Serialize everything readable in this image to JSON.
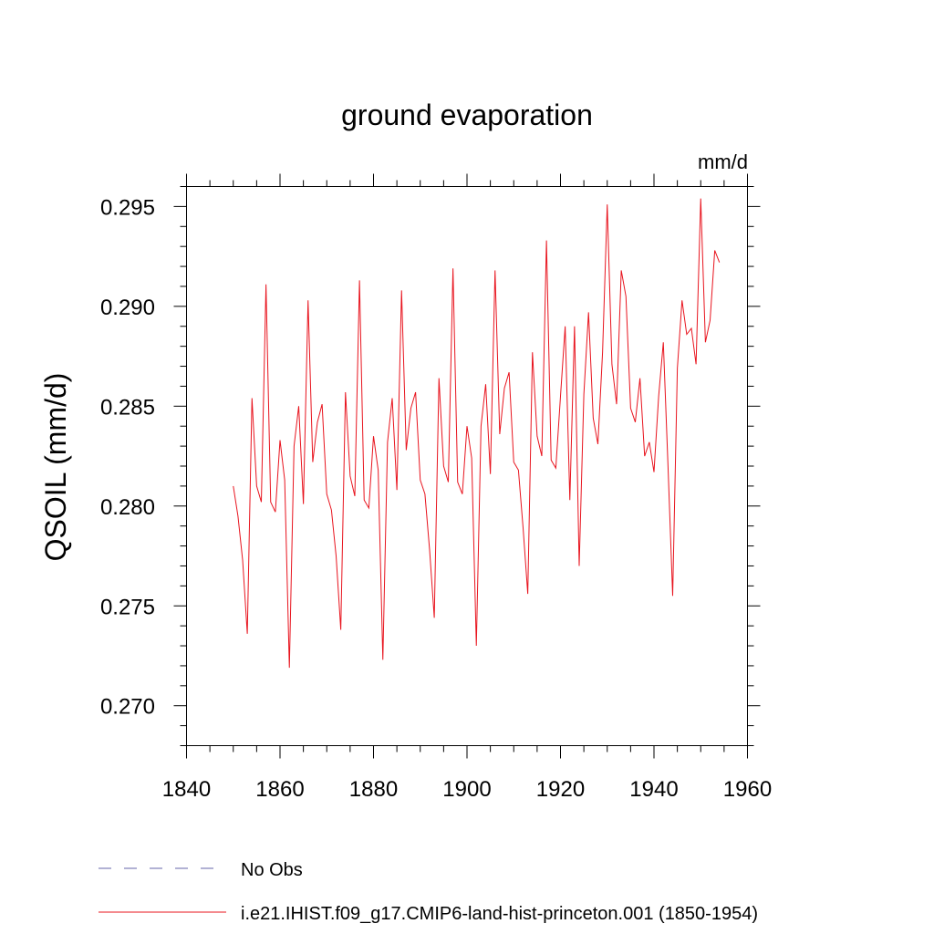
{
  "chart_data": {
    "type": "line",
    "title": "ground evaporation",
    "units_label": "mm/d",
    "ylabel": "QSOIL  (mm/d)",
    "xlabel": "",
    "xlim": [
      1840,
      1960
    ],
    "ylim": [
      0.268,
      0.296
    ],
    "xticks": [
      1840,
      1860,
      1880,
      1900,
      1920,
      1940,
      1960
    ],
    "xtick_labels": [
      "1840",
      "1860",
      "1880",
      "1900",
      "1920",
      "1940",
      "1960"
    ],
    "yticks": [
      0.27,
      0.275,
      0.28,
      0.285,
      0.29,
      0.295
    ],
    "ytick_labels": [
      "0.270",
      "0.275",
      "0.280",
      "0.285",
      "0.290",
      "0.295"
    ],
    "grid": false,
    "legend_position": "bottom",
    "series": [
      {
        "name": "i.e21.IHIST.f09_g17.CMIP6-land-hist-princeton.001 (1850-1954)",
        "color": "#e8141e",
        "style": "solid",
        "x": [
          1850,
          1851,
          1852,
          1853,
          1854,
          1855,
          1856,
          1857,
          1858,
          1859,
          1860,
          1861,
          1862,
          1863,
          1864,
          1865,
          1866,
          1867,
          1868,
          1869,
          1870,
          1871,
          1872,
          1873,
          1874,
          1875,
          1876,
          1877,
          1878,
          1879,
          1880,
          1881,
          1882,
          1883,
          1884,
          1885,
          1886,
          1887,
          1888,
          1889,
          1890,
          1891,
          1892,
          1893,
          1894,
          1895,
          1896,
          1897,
          1898,
          1899,
          1900,
          1901,
          1902,
          1903,
          1904,
          1905,
          1906,
          1907,
          1908,
          1909,
          1910,
          1911,
          1912,
          1913,
          1914,
          1915,
          1916,
          1917,
          1918,
          1919,
          1920,
          1921,
          1922,
          1923,
          1924,
          1925,
          1926,
          1927,
          1928,
          1929,
          1930,
          1931,
          1932,
          1933,
          1934,
          1935,
          1936,
          1937,
          1938,
          1939,
          1940,
          1941,
          1942,
          1943,
          1944,
          1945,
          1946,
          1947,
          1948,
          1949,
          1950,
          1951,
          1952,
          1953,
          1954
        ],
        "y": [
          0.281,
          0.2795,
          0.2773,
          0.2736,
          0.2854,
          0.281,
          0.2802,
          0.2911,
          0.2802,
          0.2797,
          0.2833,
          0.2813,
          0.2719,
          0.283,
          0.285,
          0.2801,
          0.2903,
          0.2822,
          0.2842,
          0.2851,
          0.2806,
          0.2798,
          0.2775,
          0.2738,
          0.2857,
          0.2815,
          0.2805,
          0.2913,
          0.2803,
          0.2799,
          0.2835,
          0.2818,
          0.2723,
          0.2832,
          0.2854,
          0.2808,
          0.2908,
          0.2828,
          0.2849,
          0.2857,
          0.2813,
          0.2806,
          0.2778,
          0.2744,
          0.2864,
          0.282,
          0.2812,
          0.2919,
          0.2812,
          0.2806,
          0.284,
          0.2824,
          0.273,
          0.284,
          0.2861,
          0.2816,
          0.2918,
          0.2836,
          0.2859,
          0.2867,
          0.2822,
          0.2818,
          0.2789,
          0.2756,
          0.2877,
          0.2835,
          0.2825,
          0.2933,
          0.2823,
          0.2819,
          0.2855,
          0.289,
          0.2803,
          0.289,
          0.277,
          0.2856,
          0.2897,
          0.2844,
          0.2831,
          0.2877,
          0.2951,
          0.2871,
          0.2851,
          0.2918,
          0.2905,
          0.2849,
          0.2842,
          0.2864,
          0.2825,
          0.2832,
          0.2817,
          0.2855,
          0.2882,
          0.282,
          0.2755,
          0.2869,
          0.2903,
          0.2886,
          0.2889,
          0.2871,
          0.2954,
          0.2882,
          0.2893,
          0.2928,
          0.2922
        ]
      },
      {
        "name": "No Obs",
        "color": "#6666aa",
        "style": "dashed",
        "x": [],
        "y": []
      }
    ]
  }
}
